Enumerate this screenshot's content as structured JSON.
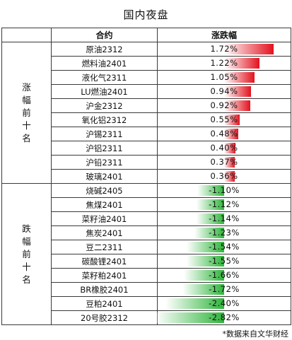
{
  "title": "国内夜盘",
  "header": {
    "group": "",
    "contract": "合约",
    "change": "涨跌幅"
  },
  "footer": "*数据来自文华财经",
  "colors": {
    "up": "#e3121e",
    "down": "#2eb53a"
  },
  "chart_data": {
    "type": "table",
    "columns": [
      "合约",
      "涨跌幅"
    ],
    "groups": [
      {
        "label": "涨幅前十名",
        "direction": "up",
        "rows": [
          {
            "name": "原油2312",
            "value": 1.72,
            "text": "1.72%"
          },
          {
            "name": "燃料油2401",
            "value": 1.22,
            "text": "1.22%"
          },
          {
            "name": "液化气2311",
            "value": 1.05,
            "text": "1.05%"
          },
          {
            "name": "LU燃油2401",
            "value": 0.94,
            "text": "0.94%"
          },
          {
            "name": "沪金2312",
            "value": 0.92,
            "text": "0.92%"
          },
          {
            "name": "氧化铝2312",
            "value": 0.55,
            "text": "0.55%"
          },
          {
            "name": "沪锡2311",
            "value": 0.48,
            "text": "0.48%"
          },
          {
            "name": "沪铝2311",
            "value": 0.4,
            "text": "0.40%"
          },
          {
            "name": "沪铅2311",
            "value": 0.37,
            "text": "0.37%"
          },
          {
            "name": "玻璃2401",
            "value": 0.36,
            "text": "0.36%"
          }
        ]
      },
      {
        "label": "跌幅前十名",
        "direction": "down",
        "rows": [
          {
            "name": "烧碱2405",
            "value": -1.1,
            "text": "-1.10%"
          },
          {
            "name": "焦煤2401",
            "value": -1.12,
            "text": "-1.12%"
          },
          {
            "name": "菜籽油2401",
            "value": -1.14,
            "text": "-1.14%"
          },
          {
            "name": "焦炭2401",
            "value": -1.23,
            "text": "-1.23%"
          },
          {
            "name": "豆二2311",
            "value": -1.54,
            "text": "-1.54%"
          },
          {
            "name": "碳酸锂2401",
            "value": -1.55,
            "text": "-1.55%"
          },
          {
            "name": "菜籽粕2401",
            "value": -1.66,
            "text": "-1.66%"
          },
          {
            "name": "BR橡胶2401",
            "value": -1.72,
            "text": "-1.72%"
          },
          {
            "name": "豆粕2401",
            "value": -2.4,
            "text": "-2.40%"
          },
          {
            "name": "20号胶2312",
            "value": -2.82,
            "text": "-2.82%"
          }
        ]
      }
    ]
  }
}
